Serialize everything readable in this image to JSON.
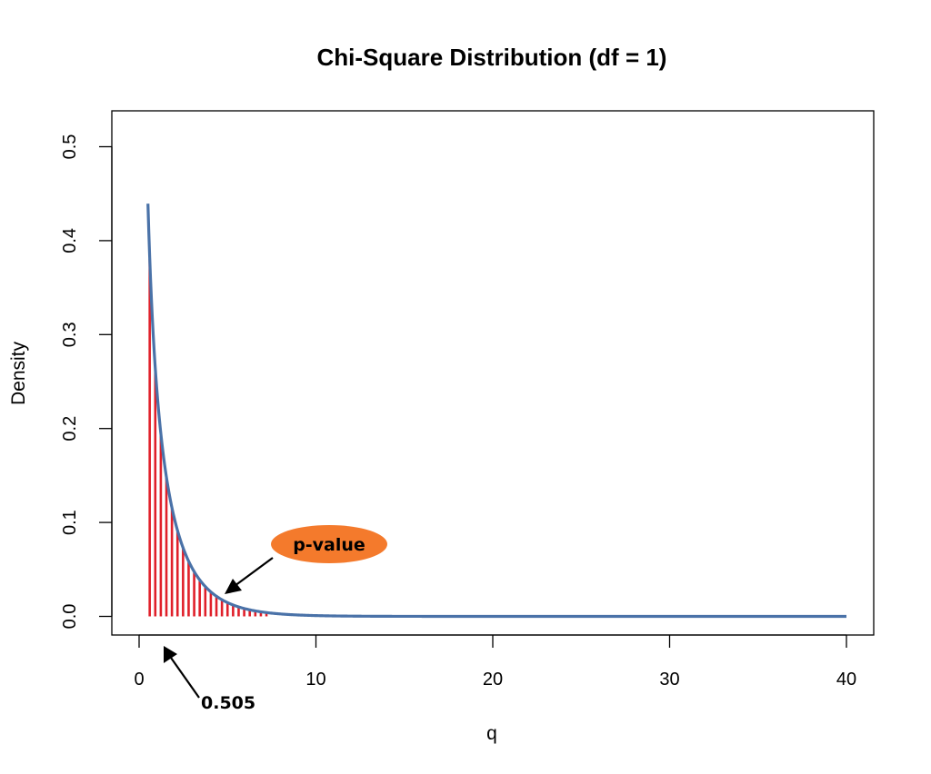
{
  "chart_data": {
    "type": "line",
    "title": "Chi-Square Distribution (df = 1)",
    "xlabel": "q",
    "ylabel": "Density",
    "xlim": [
      0,
      40
    ],
    "ylim": [
      0,
      0.5
    ],
    "x_ticks": [
      "0",
      "10",
      "20",
      "30",
      "40"
    ],
    "y_ticks": [
      "0.0",
      "0.1",
      "0.2",
      "0.3",
      "0.4",
      "0.5"
    ],
    "grid": false,
    "df": 1,
    "curve_x_range": [
      0.5,
      40
    ],
    "shade_x_range": [
      0.505,
      7.2
    ],
    "colors": {
      "curve": "#4a72a8",
      "shade": "#e0202a",
      "badge": "#f47a2c"
    },
    "annotations": {
      "p_value_label": "p-value",
      "critical_value_label": "0.505"
    }
  }
}
